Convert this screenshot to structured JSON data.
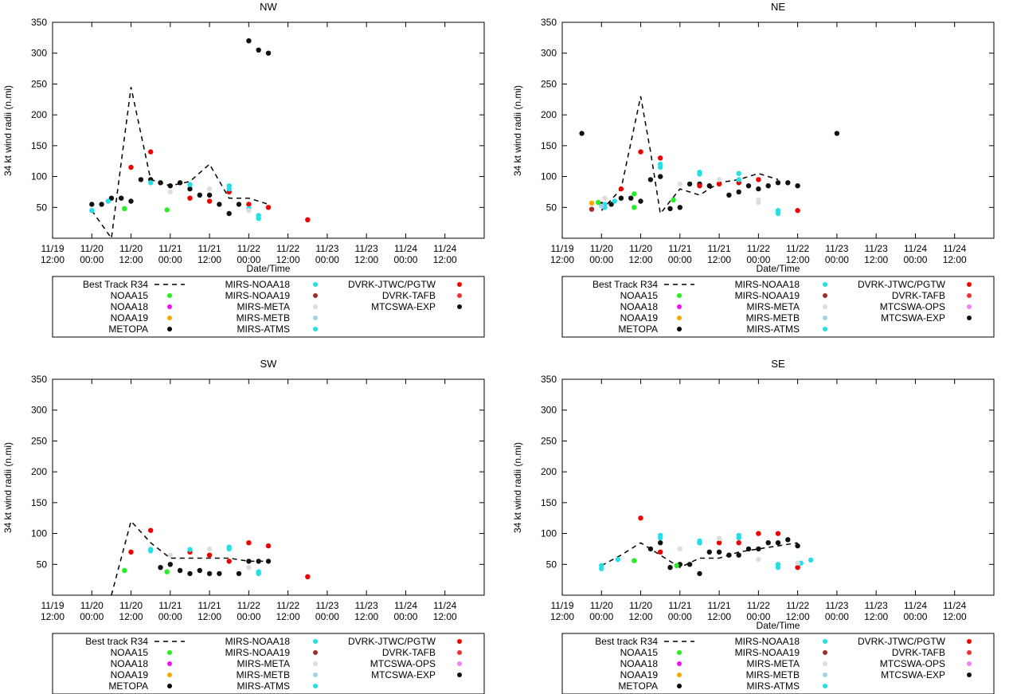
{
  "common": {
    "ylabel": "34 kt wind radii (n.mi)",
    "xlabel": "Date/Time",
    "y_ticks": [
      50,
      100,
      150,
      200,
      250,
      300,
      350
    ],
    "ylim": [
      0,
      350
    ],
    "x_range_hours": [
      0,
      132
    ],
    "x_ticks": [
      {
        "h": 0,
        "d": "11/19",
        "t": "12:00"
      },
      {
        "h": 12,
        "d": "11/20",
        "t": "00:00"
      },
      {
        "h": 24,
        "d": "11/20",
        "t": "12:00"
      },
      {
        "h": 36,
        "d": "11/21",
        "t": "00:00"
      },
      {
        "h": 48,
        "d": "11/21",
        "t": "12:00"
      },
      {
        "h": 60,
        "d": "11/22",
        "t": "00:00"
      },
      {
        "h": 72,
        "d": "11/22",
        "t": "12:00"
      },
      {
        "h": 84,
        "d": "11/23",
        "t": "00:00"
      },
      {
        "h": 96,
        "d": "11/23",
        "t": "12:00"
      },
      {
        "h": 108,
        "d": "11/24",
        "t": "00:00"
      },
      {
        "h": 120,
        "d": "11/24",
        "t": "12:00"
      }
    ]
  },
  "colors": {
    "NOAA15": "#22ee22",
    "NOAA18": "#ee11ee",
    "NOAA19": "#ffa500",
    "METOPA": "#000000",
    "MIRS-NOAA18": "#22e0e6",
    "MIRS-NOAA19": "#a52a2a",
    "MIRS-META": "#dddddd",
    "MIRS-METB": "#a6d1ea",
    "MIRS-ATMS": "#22e0e6",
    "DVRK-JTWC/PGTW": "#ee0000",
    "DVRK-TAFB": "#ee3333",
    "MTCSWA-OPS": "#ee82ee",
    "MTCSWA-EXP": "#111111",
    "best_track": "#000000"
  },
  "chart_data": [
    {
      "type": "scatter",
      "title": "NW",
      "best_track": {
        "label": "Best Track R34",
        "x": [
          12,
          18,
          24,
          30,
          36,
          42,
          48,
          54,
          60,
          66
        ],
        "y": [
          45,
          0,
          245,
          95,
          85,
          92,
          120,
          65,
          65,
          55
        ]
      },
      "legend": {
        "col1": [
          "NOAA15",
          "NOAA18",
          "NOAA19",
          "METOPA"
        ],
        "col2": [
          "MIRS-NOAA18",
          "MIRS-NOAA19",
          "MIRS-META",
          "MIRS-METB",
          "MIRS-ATMS"
        ],
        "col3": [
          "DVRK-JTWC/PGTW",
          "DVRK-TAFB",
          "MTCSWA-EXP"
        ]
      },
      "series": [
        {
          "name": "MTCSWA-EXP",
          "points": [
            [
              12,
              55
            ],
            [
              15,
              55
            ],
            [
              18,
              65
            ],
            [
              21,
              65
            ],
            [
              24,
              60
            ],
            [
              27,
              95
            ],
            [
              30,
              95
            ],
            [
              33,
              90
            ],
            [
              36,
              85
            ],
            [
              39,
              90
            ],
            [
              42,
              80
            ],
            [
              45,
              70
            ],
            [
              48,
              70
            ],
            [
              51,
              55
            ],
            [
              54,
              40
            ],
            [
              57,
              55
            ],
            [
              60,
              320
            ],
            [
              63,
              305
            ],
            [
              66,
              300
            ]
          ]
        },
        {
          "name": "DVRK-JTWC/PGTW",
          "points": [
            [
              24,
              115
            ],
            [
              30,
              140
            ],
            [
              42,
              65
            ],
            [
              48,
              60
            ],
            [
              54,
              75
            ],
            [
              60,
              55
            ],
            [
              66,
              50
            ],
            [
              78,
              30
            ]
          ]
        },
        {
          "name": "NOAA15",
          "points": [
            [
              22,
              48
            ],
            [
              35,
              46
            ]
          ]
        },
        {
          "name": "MIRS-NOAA18",
          "points": [
            [
              12,
              45
            ],
            [
              17,
              60
            ],
            [
              30,
              90
            ],
            [
              42,
              87
            ],
            [
              54,
              80
            ],
            [
              54,
              85
            ],
            [
              60,
              48
            ],
            [
              63,
              32
            ],
            [
              63,
              37
            ]
          ]
        },
        {
          "name": "MIRS-META",
          "points": [
            [
              36,
              75
            ],
            [
              48,
              80
            ],
            [
              60,
              45
            ]
          ]
        }
      ]
    },
    {
      "type": "scatter",
      "title": "NE",
      "best_track": {
        "label": "Best Track R34",
        "x": [
          12,
          18,
          24,
          27,
          30,
          36,
          42,
          48,
          54,
          60,
          66
        ],
        "y": [
          45,
          80,
          230,
          140,
          40,
          80,
          70,
          90,
          95,
          105,
          95
        ]
      },
      "legend": {
        "col1": [
          "NOAA15",
          "NOAA18",
          "NOAA19",
          "METOPA"
        ],
        "col2": [
          "MIRS-NOAA18",
          "MIRS-NOAA19",
          "MIRS-META",
          "MIRS-METB",
          "MIRS-ATMS"
        ],
        "col3": [
          "DVRK-JTWC/PGTW",
          "DVRK-TAFB",
          "MTCSWA-OPS",
          "MTCSWA-EXP"
        ]
      },
      "series": [
        {
          "name": "MTCSWA-EXP",
          "points": [
            [
              6,
              170
            ],
            [
              12,
              55
            ],
            [
              15,
              55
            ],
            [
              18,
              65
            ],
            [
              21,
              65
            ],
            [
              24,
              60
            ],
            [
              27,
              95
            ],
            [
              30,
              100
            ],
            [
              33,
              48
            ],
            [
              36,
              50
            ],
            [
              39,
              88
            ],
            [
              42,
              88
            ],
            [
              45,
              85
            ],
            [
              48,
              88
            ],
            [
              51,
              70
            ],
            [
              54,
              75
            ],
            [
              57,
              85
            ],
            [
              60,
              80
            ],
            [
              63,
              85
            ],
            [
              66,
              90
            ],
            [
              69,
              90
            ],
            [
              72,
              85
            ],
            [
              84,
              170
            ]
          ]
        },
        {
          "name": "DVRK-JTWC/PGTW",
          "points": [
            [
              18,
              80
            ],
            [
              24,
              140
            ],
            [
              30,
              130
            ],
            [
              42,
              85
            ],
            [
              48,
              88
            ],
            [
              54,
              90
            ],
            [
              60,
              95
            ],
            [
              72,
              45
            ]
          ]
        },
        {
          "name": "NOAA15",
          "points": [
            [
              11,
              58
            ],
            [
              22,
              72
            ],
            [
              22,
              50
            ],
            [
              34,
              62
            ]
          ]
        },
        {
          "name": "NOAA19",
          "points": [
            [
              9,
              57
            ]
          ]
        },
        {
          "name": "MIRS-NOAA19",
          "points": [
            [
              9,
              47
            ]
          ]
        },
        {
          "name": "MIRS-NOAA18",
          "points": [
            [
              13,
              50
            ],
            [
              13,
              55
            ],
            [
              16,
              60
            ],
            [
              30,
              115
            ],
            [
              30,
              120
            ],
            [
              42,
              104
            ],
            [
              42,
              107
            ],
            [
              54,
              95
            ],
            [
              54,
              105
            ],
            [
              66,
              40
            ],
            [
              66,
              45
            ]
          ]
        },
        {
          "name": "MIRS-META",
          "points": [
            [
              13,
              65
            ],
            [
              36,
              88
            ],
            [
              48,
              95
            ],
            [
              60,
              58
            ],
            [
              60,
              62
            ]
          ]
        },
        {
          "name": "MIRS-METB",
          "points": [
            [
              12,
              52
            ]
          ]
        }
      ]
    },
    {
      "type": "scatter",
      "title": "SW",
      "best_track": {
        "label": "Best track R34",
        "x": [
          18,
          24,
          30,
          36,
          42,
          48,
          54,
          60,
          66
        ],
        "y": [
          0,
          120,
          85,
          60,
          60,
          60,
          60,
          55,
          55
        ]
      },
      "legend": {
        "col1": [
          "NOAA15",
          "NOAA18",
          "NOAA19",
          "METOPA"
        ],
        "col2": [
          "MIRS-NOAA18",
          "MIRS-NOAA19",
          "MIRS-META",
          "MIRS-METB",
          "MIRS-ATMS"
        ],
        "col3": [
          "DVRK-JTWC/PGTW",
          "DVRK-TAFB",
          "MTCSWA-OPS",
          "MTCSWA-EXP"
        ]
      },
      "series": [
        {
          "name": "MTCSWA-EXP",
          "points": [
            [
              33,
              45
            ],
            [
              36,
              50
            ],
            [
              39,
              40
            ],
            [
              42,
              35
            ],
            [
              45,
              40
            ],
            [
              48,
              35
            ],
            [
              51,
              35
            ],
            [
              57,
              35
            ],
            [
              60,
              55
            ],
            [
              63,
              55
            ],
            [
              66,
              55
            ]
          ]
        },
        {
          "name": "DVRK-JTWC/PGTW",
          "points": [
            [
              24,
              70
            ],
            [
              30,
              105
            ],
            [
              42,
              70
            ],
            [
              48,
              65
            ],
            [
              54,
              55
            ],
            [
              60,
              85
            ],
            [
              66,
              80
            ],
            [
              78,
              30
            ]
          ]
        },
        {
          "name": "NOAA15",
          "points": [
            [
              22,
              40
            ],
            [
              35,
              38
            ]
          ]
        },
        {
          "name": "MIRS-NOAA18",
          "points": [
            [
              30,
              72
            ],
            [
              30,
              74
            ],
            [
              42,
              74
            ],
            [
              54,
              75
            ],
            [
              54,
              78
            ],
            [
              63,
              35
            ],
            [
              63,
              38
            ]
          ]
        },
        {
          "name": "MIRS-META",
          "points": [
            [
              36,
              65
            ],
            [
              48,
              75
            ],
            [
              60,
              45
            ]
          ]
        }
      ]
    },
    {
      "type": "scatter",
      "title": "SE",
      "best_track": {
        "label": "Best track R34",
        "x": [
          12,
          18,
          24,
          30,
          36,
          42,
          48,
          54,
          60,
          66,
          72
        ],
        "y": [
          48,
          65,
          85,
          65,
          45,
          60,
          60,
          70,
          75,
          80,
          85
        ]
      },
      "legend": {
        "col1": [
          "NOAA15",
          "NOAA18",
          "NOAA19",
          "METOPA"
        ],
        "col2": [
          "MIRS-NOAA18",
          "MIRS-NOAA19",
          "MIRS-META",
          "MIRS-METB",
          "MIRS-ATMS"
        ],
        "col3": [
          "DVRK-JTWC/PGTW",
          "DVRK-TAFB",
          "MTCSWA-OPS",
          "MTCSWA-EXP"
        ]
      },
      "series": [
        {
          "name": "MTCSWA-EXP",
          "points": [
            [
              27,
              75
            ],
            [
              30,
              85
            ],
            [
              33,
              45
            ],
            [
              36,
              50
            ],
            [
              39,
              50
            ],
            [
              42,
              35
            ],
            [
              45,
              70
            ],
            [
              48,
              70
            ],
            [
              51,
              65
            ],
            [
              54,
              65
            ],
            [
              57,
              75
            ],
            [
              60,
              75
            ],
            [
              63,
              85
            ],
            [
              66,
              85
            ],
            [
              69,
              90
            ],
            [
              72,
              80
            ]
          ]
        },
        {
          "name": "DVRK-JTWC/PGTW",
          "points": [
            [
              24,
              125
            ],
            [
              30,
              70
            ],
            [
              42,
              85
            ],
            [
              48,
              85
            ],
            [
              54,
              85
            ],
            [
              60,
              100
            ],
            [
              66,
              100
            ],
            [
              72,
              45
            ]
          ]
        },
        {
          "name": "NOAA15",
          "points": [
            [
              22,
              56
            ],
            [
              35,
              48
            ]
          ]
        },
        {
          "name": "MIRS-NOAA18",
          "points": [
            [
              12,
              43
            ],
            [
              12,
              48
            ],
            [
              17,
              58
            ],
            [
              30,
              93
            ],
            [
              30,
              97
            ],
            [
              42,
              85
            ],
            [
              42,
              88
            ],
            [
              54,
              93
            ],
            [
              54,
              97
            ],
            [
              66,
              45
            ],
            [
              66,
              50
            ],
            [
              73,
              52
            ],
            [
              76,
              57
            ]
          ]
        },
        {
          "name": "MIRS-META",
          "points": [
            [
              36,
              75
            ],
            [
              48,
              92
            ],
            [
              60,
              58
            ],
            [
              72,
              52
            ]
          ]
        }
      ]
    }
  ]
}
